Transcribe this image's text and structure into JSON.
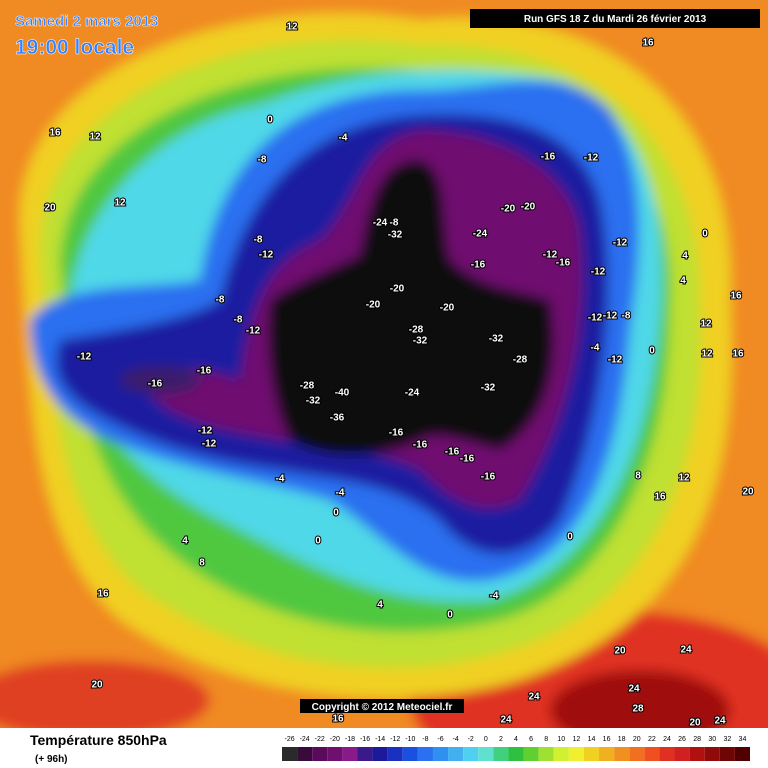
{
  "header": {
    "date": "Samedi 2 mars 2013",
    "time": "19:00 locale",
    "run": "Run GFS 18 Z du Mardi 26 février 2013"
  },
  "copyright": "Copyright © 2012 Meteociel.fr",
  "footer": {
    "title": "Température 850hPa",
    "lead": "(+ 96h)"
  },
  "legend": {
    "ticks": [
      -26,
      -24,
      -22,
      -20,
      -18,
      -16,
      -14,
      -12,
      -10,
      -8,
      -6,
      -4,
      -2,
      0,
      2,
      4,
      6,
      8,
      10,
      12,
      14,
      16,
      18,
      20,
      22,
      24,
      26,
      28,
      30,
      32,
      34
    ],
    "colors": [
      "#2a2a2a",
      "#3a0a3a",
      "#5a0a5a",
      "#700f70",
      "#8a1a8a",
      "#3a1a8a",
      "#1a1a9a",
      "#1a30c0",
      "#1a50e0",
      "#2a70f0",
      "#3090f0",
      "#40b0f0",
      "#50d0f0",
      "#60e0d0",
      "#40d080",
      "#30c040",
      "#60d030",
      "#a0e030",
      "#d0f030",
      "#f0f030",
      "#f0d020",
      "#f0b020",
      "#f09020",
      "#f07020",
      "#f05020",
      "#e03020",
      "#d02020",
      "#b01010",
      "#900a0a",
      "#700505",
      "#500000"
    ]
  },
  "contours": [
    "12",
    "16",
    "16",
    "12",
    "20",
    "12",
    "0",
    "-4",
    "-8",
    "-16",
    "-12",
    "-24",
    "-8",
    "-32",
    "-20",
    "-20",
    "-24",
    "-16",
    "-8",
    "-12",
    "-12",
    "-16",
    "-12",
    "-20",
    "-20",
    "-20",
    "-8",
    "-8",
    "-12",
    "-28",
    "-32",
    "-32",
    "-28",
    "-32",
    "-28",
    "-40",
    "-32",
    "-36",
    "-24",
    "-12",
    "-16",
    "-16",
    "-12",
    "-12",
    "-16",
    "-16",
    "-16",
    "-16",
    "-16",
    "-4",
    "-4",
    "0",
    "0",
    "4",
    "8",
    "16",
    "20",
    "4",
    "0",
    "-4",
    "0",
    "8",
    "16",
    "20",
    "12",
    "20",
    "24",
    "24",
    "28",
    "24",
    "24",
    "20",
    "24",
    "16",
    "16",
    "12",
    "16",
    "12",
    "0",
    "4",
    "-12",
    "-12",
    "-8",
    "-12",
    "-4",
    "-12",
    "0",
    "4"
  ]
}
